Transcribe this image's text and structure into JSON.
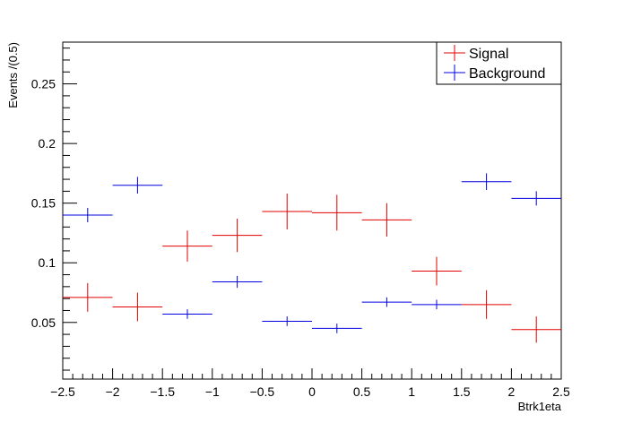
{
  "chart_data": {
    "type": "scatter",
    "title": "",
    "xlabel": "Btrk1eta",
    "ylabel": "Events /(0.5)",
    "xlim": [
      -2.5,
      2.5
    ],
    "ylim": [
      0.0025,
      0.285
    ],
    "xticks": [
      -2.5,
      -2,
      -1.5,
      -1,
      -0.5,
      0,
      0.5,
      1,
      1.5,
      2,
      2.5
    ],
    "xtick_labels": [
      "−2.5",
      "−2",
      "−1.5",
      "−1",
      "−0.5",
      "0",
      "0.5",
      "1",
      "1.5",
      "2",
      "2.5"
    ],
    "yticks": [
      0.05,
      0.1,
      0.15,
      0.2,
      0.25
    ],
    "ytick_labels": [
      "0.05",
      "0.1",
      "0.15",
      "0.2",
      "0.25"
    ],
    "bin_width": 0.5,
    "legend_position": "top-right",
    "grid": false,
    "series": [
      {
        "name": "Signal",
        "color": "#e00000",
        "x": [
          -2.25,
          -1.75,
          -1.25,
          -0.75,
          -0.25,
          0.25,
          0.75,
          1.25,
          1.75,
          2.25
        ],
        "y": [
          0.071,
          0.063,
          0.114,
          0.123,
          0.143,
          0.142,
          0.136,
          0.093,
          0.065,
          0.044
        ],
        "yerr": [
          0.012,
          0.012,
          0.013,
          0.014,
          0.015,
          0.015,
          0.014,
          0.012,
          0.012,
          0.011
        ]
      },
      {
        "name": "Background",
        "color": "#0000e0",
        "x": [
          -2.25,
          -1.75,
          -1.25,
          -0.75,
          -0.25,
          0.25,
          0.75,
          1.25,
          1.75,
          2.25
        ],
        "y": [
          0.14,
          0.165,
          0.057,
          0.084,
          0.051,
          0.045,
          0.067,
          0.065,
          0.168,
          0.154
        ],
        "yerr": [
          0.006,
          0.007,
          0.004,
          0.005,
          0.004,
          0.004,
          0.004,
          0.004,
          0.007,
          0.006
        ]
      }
    ]
  }
}
